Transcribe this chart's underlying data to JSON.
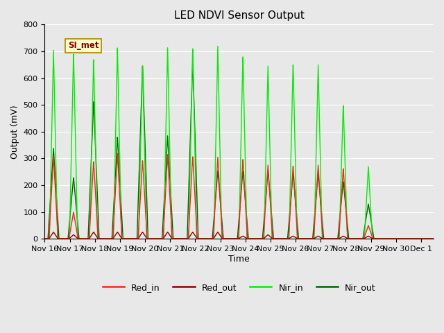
{
  "title": "LED NDVI Sensor Output",
  "xlabel": "Time",
  "ylabel": "Output (mV)",
  "ylim": [
    0,
    800
  ],
  "background_color": "#e8e8e8",
  "plot_bg_color": "#e8e8e8",
  "annotation_text": "SI_met",
  "x_tick_labels": [
    "Nov 16",
    "Nov 17",
    "Nov 18",
    "Nov 19",
    "Nov 20",
    "Nov 21",
    "Nov 22",
    "Nov 23",
    "Nov 24",
    "Nov 25",
    "Nov 26",
    "Nov 27",
    "Nov 28",
    "Nov 29",
    "Nov 30",
    "Dec 1"
  ],
  "x_tick_positions": [
    0,
    1,
    2,
    3,
    4,
    5,
    6,
    7,
    8,
    9,
    10,
    11,
    12,
    13,
    14,
    15
  ],
  "series": {
    "red_in_peaks": [
      0.35,
      1.15,
      1.95,
      2.9,
      3.9,
      4.9,
      5.9,
      6.9,
      7.9,
      8.9,
      9.9,
      10.9,
      11.9,
      12.9
    ],
    "red_in_vals": [
      310,
      100,
      290,
      320,
      295,
      315,
      310,
      305,
      300,
      275,
      275,
      275,
      265,
      50
    ],
    "red_out_peaks": [
      0.35,
      1.15,
      1.95,
      2.9,
      3.9,
      4.9,
      5.9,
      6.9,
      7.9,
      8.9,
      9.9,
      10.9,
      11.9,
      12.9
    ],
    "red_out_vals": [
      25,
      15,
      25,
      25,
      25,
      25,
      25,
      25,
      10,
      15,
      10,
      10,
      10,
      10
    ],
    "nir_in_peaks": [
      0.35,
      1.15,
      1.95,
      2.9,
      3.9,
      4.9,
      5.9,
      6.9,
      7.9,
      8.9,
      9.9,
      10.9,
      11.9,
      12.9
    ],
    "nir_in_vals": [
      710,
      700,
      675,
      715,
      655,
      715,
      720,
      720,
      690,
      645,
      660,
      650,
      505,
      270
    ],
    "nir_out_peaks": [
      0.35,
      1.15,
      1.95,
      2.9,
      3.9,
      4.9,
      5.9,
      6.9,
      7.9,
      8.9,
      9.9,
      10.9,
      11.9,
      12.9
    ],
    "nir_out_vals": [
      340,
      230,
      515,
      380,
      650,
      385,
      665,
      255,
      255,
      255,
      245,
      245,
      215,
      130
    ]
  },
  "colors": {
    "red_in": "#ff2020",
    "red_out": "#8b0000",
    "nir_in": "#00ee00",
    "nir_out": "#006400"
  },
  "legend_labels": [
    "Red_in",
    "Red_out",
    "Nir_in",
    "Nir_out"
  ]
}
